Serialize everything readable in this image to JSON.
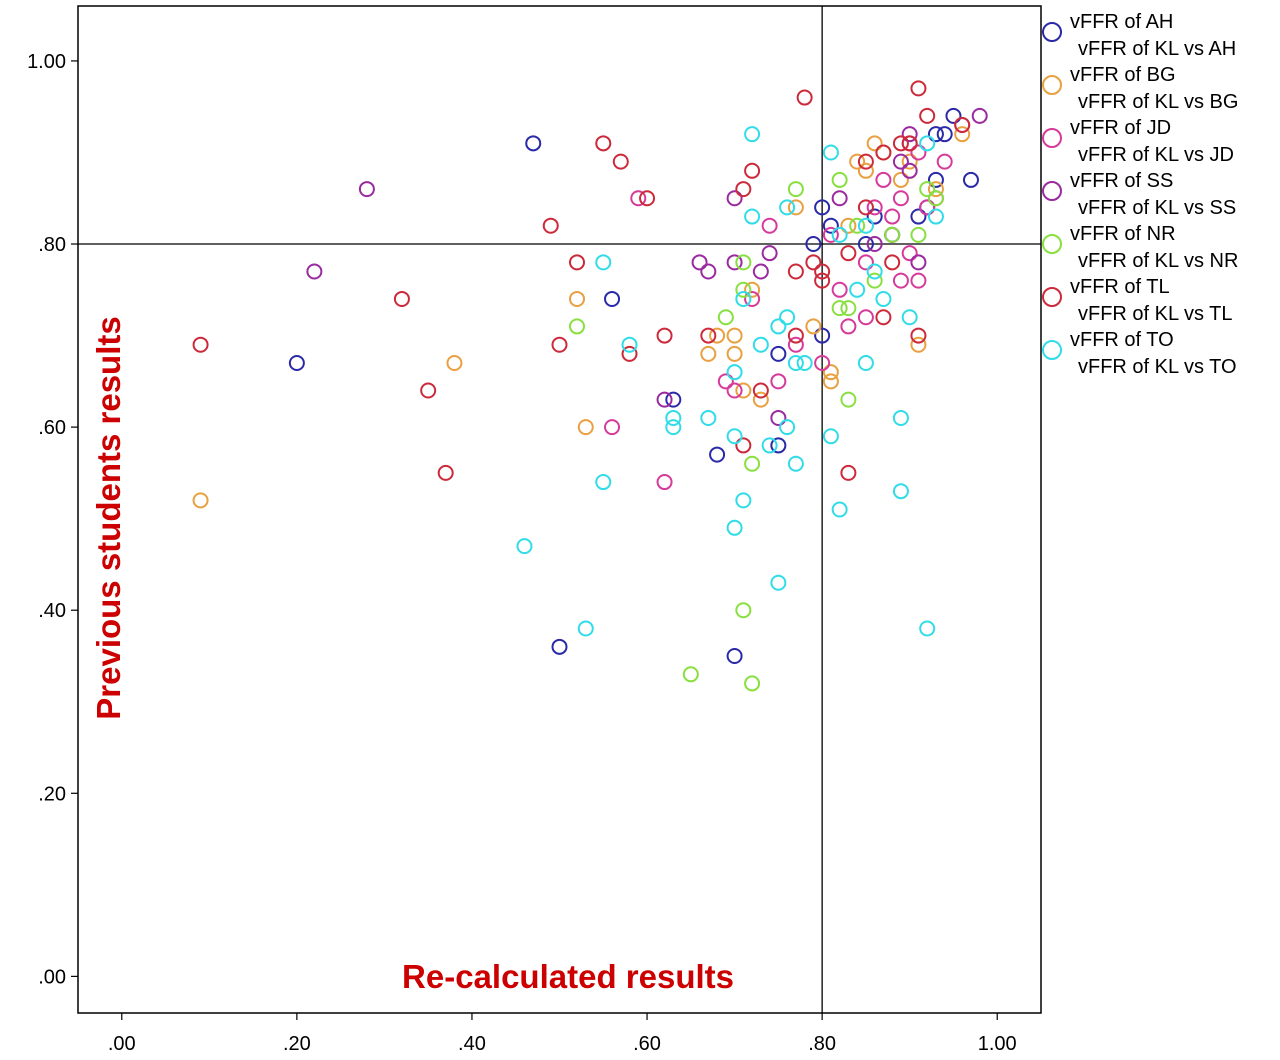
{
  "chart_data": {
    "type": "scatter",
    "title": "",
    "xlabel": "Re-calculated results",
    "ylabel": "Previous students results",
    "xlim": [
      -0.05,
      1.05
    ],
    "ylim": [
      -0.04,
      1.06
    ],
    "x_ticks": [
      ".00",
      ".20",
      ".40",
      ".60",
      ".80",
      "1.00"
    ],
    "y_ticks": [
      ".00",
      ".20",
      ".40",
      ".60",
      ".80",
      "1.00"
    ],
    "grid": false,
    "reference_lines": {
      "x": 0.8,
      "y": 0.8
    },
    "legend_position": "right",
    "series": [
      {
        "name": "vFFR of AH vFFR of KL vs AH",
        "label_line1": "vFFR of AH",
        "label_line2": "vFFR of KL vs AH",
        "color": "#2a2aa8",
        "points": [
          [
            0.2,
            0.67
          ],
          [
            0.47,
            0.91
          ],
          [
            0.5,
            0.36
          ],
          [
            0.56,
            0.74
          ],
          [
            0.63,
            0.63
          ],
          [
            0.68,
            0.57
          ],
          [
            0.7,
            0.35
          ],
          [
            0.75,
            0.68
          ],
          [
            0.75,
            0.58
          ],
          [
            0.79,
            0.8
          ],
          [
            0.8,
            0.84
          ],
          [
            0.8,
            0.7
          ],
          [
            0.81,
            0.82
          ],
          [
            0.85,
            0.8
          ],
          [
            0.86,
            0.83
          ],
          [
            0.88,
            0.81
          ],
          [
            0.91,
            0.83
          ],
          [
            0.92,
            0.84
          ],
          [
            0.93,
            0.87
          ],
          [
            0.93,
            0.92
          ],
          [
            0.94,
            0.92
          ],
          [
            0.95,
            0.94
          ],
          [
            0.97,
            0.87
          ]
        ]
      },
      {
        "name": "vFFR of BG vFFR of KL vs BG",
        "label_line1": "vFFR of BG",
        "label_line2": "vFFR of KL vs BG",
        "color": "#e8a040",
        "points": [
          [
            0.09,
            0.52
          ],
          [
            0.38,
            0.67
          ],
          [
            0.52,
            0.74
          ],
          [
            0.53,
            0.6
          ],
          [
            0.67,
            0.68
          ],
          [
            0.68,
            0.7
          ],
          [
            0.7,
            0.7
          ],
          [
            0.7,
            0.68
          ],
          [
            0.71,
            0.64
          ],
          [
            0.72,
            0.75
          ],
          [
            0.73,
            0.63
          ],
          [
            0.77,
            0.84
          ],
          [
            0.79,
            0.71
          ],
          [
            0.81,
            0.66
          ],
          [
            0.81,
            0.65
          ],
          [
            0.83,
            0.82
          ],
          [
            0.84,
            0.89
          ],
          [
            0.85,
            0.88
          ],
          [
            0.86,
            0.91
          ],
          [
            0.87,
            0.9
          ],
          [
            0.89,
            0.87
          ],
          [
            0.9,
            0.89
          ],
          [
            0.91,
            0.69
          ],
          [
            0.93,
            0.86
          ],
          [
            0.96,
            0.92
          ]
        ]
      },
      {
        "name": "vFFR of JD vFFR of KL vs JD",
        "label_line1": "vFFR of JD",
        "label_line2": "vFFR of KL vs JD",
        "color": "#d63a9a",
        "points": [
          [
            0.56,
            0.6
          ],
          [
            0.59,
            0.85
          ],
          [
            0.62,
            0.54
          ],
          [
            0.69,
            0.65
          ],
          [
            0.7,
            0.64
          ],
          [
            0.72,
            0.74
          ],
          [
            0.74,
            0.82
          ],
          [
            0.75,
            0.65
          ],
          [
            0.77,
            0.69
          ],
          [
            0.8,
            0.67
          ],
          [
            0.81,
            0.81
          ],
          [
            0.82,
            0.75
          ],
          [
            0.83,
            0.71
          ],
          [
            0.85,
            0.72
          ],
          [
            0.85,
            0.78
          ],
          [
            0.86,
            0.84
          ],
          [
            0.87,
            0.87
          ],
          [
            0.88,
            0.83
          ],
          [
            0.89,
            0.85
          ],
          [
            0.89,
            0.76
          ],
          [
            0.9,
            0.79
          ],
          [
            0.9,
            0.91
          ],
          [
            0.91,
            0.76
          ],
          [
            0.91,
            0.9
          ],
          [
            0.92,
            0.84
          ],
          [
            0.93,
            0.85
          ],
          [
            0.94,
            0.89
          ],
          [
            0.96,
            0.93
          ]
        ]
      },
      {
        "name": "vFFR of SS vFFR of KL vs SS",
        "label_line1": "vFFR of SS",
        "label_line2": "vFFR of KL vs SS",
        "color": "#9a2aa0",
        "points": [
          [
            0.22,
            0.77
          ],
          [
            0.28,
            0.86
          ],
          [
            0.62,
            0.63
          ],
          [
            0.66,
            0.78
          ],
          [
            0.67,
            0.77
          ],
          [
            0.7,
            0.78
          ],
          [
            0.7,
            0.85
          ],
          [
            0.73,
            0.77
          ],
          [
            0.74,
            0.79
          ],
          [
            0.75,
            0.61
          ],
          [
            0.82,
            0.85
          ],
          [
            0.86,
            0.8
          ],
          [
            0.88,
            0.81
          ],
          [
            0.89,
            0.89
          ],
          [
            0.9,
            0.92
          ],
          [
            0.9,
            0.88
          ],
          [
            0.91,
            0.78
          ],
          [
            0.98,
            0.94
          ]
        ]
      },
      {
        "name": "vFFR of NR vFFR of KL vs NR",
        "label_line1": "vFFR of NR",
        "label_line2": "vFFR of KL vs NR",
        "color": "#88e040",
        "points": [
          [
            0.52,
            0.71
          ],
          [
            0.65,
            0.33
          ],
          [
            0.69,
            0.72
          ],
          [
            0.71,
            0.4
          ],
          [
            0.71,
            0.78
          ],
          [
            0.71,
            0.75
          ],
          [
            0.72,
            0.56
          ],
          [
            0.72,
            0.32
          ],
          [
            0.77,
            0.86
          ],
          [
            0.82,
            0.87
          ],
          [
            0.82,
            0.73
          ],
          [
            0.83,
            0.73
          ],
          [
            0.83,
            0.63
          ],
          [
            0.84,
            0.82
          ],
          [
            0.86,
            0.76
          ],
          [
            0.88,
            0.81
          ],
          [
            0.91,
            0.81
          ],
          [
            0.92,
            0.86
          ],
          [
            0.93,
            0.85
          ]
        ]
      },
      {
        "name": "vFFR of TL vFFR of KL vs TL",
        "label_line1": "vFFR of TL",
        "label_line2": "vFFR of KL vs TL",
        "color": "#cc2a3a",
        "points": [
          [
            0.09,
            0.69
          ],
          [
            0.32,
            0.74
          ],
          [
            0.35,
            0.64
          ],
          [
            0.37,
            0.55
          ],
          [
            0.49,
            0.82
          ],
          [
            0.5,
            0.69
          ],
          [
            0.52,
            0.78
          ],
          [
            0.55,
            0.91
          ],
          [
            0.57,
            0.89
          ],
          [
            0.58,
            0.68
          ],
          [
            0.6,
            0.85
          ],
          [
            0.62,
            0.7
          ],
          [
            0.67,
            0.7
          ],
          [
            0.71,
            0.86
          ],
          [
            0.71,
            0.58
          ],
          [
            0.72,
            0.88
          ],
          [
            0.73,
            0.64
          ],
          [
            0.77,
            0.77
          ],
          [
            0.77,
            0.7
          ],
          [
            0.78,
            0.96
          ],
          [
            0.79,
            0.78
          ],
          [
            0.8,
            0.77
          ],
          [
            0.8,
            0.76
          ],
          [
            0.83,
            0.79
          ],
          [
            0.83,
            0.55
          ],
          [
            0.85,
            0.89
          ],
          [
            0.85,
            0.84
          ],
          [
            0.87,
            0.9
          ],
          [
            0.87,
            0.72
          ],
          [
            0.88,
            0.78
          ],
          [
            0.89,
            0.91
          ],
          [
            0.9,
            0.91
          ],
          [
            0.91,
            0.97
          ],
          [
            0.91,
            0.7
          ],
          [
            0.92,
            0.94
          ],
          [
            0.96,
            0.93
          ]
        ]
      },
      {
        "name": "vFFR of TO vFFR of KL vs TO",
        "label_line1": "vFFR of TO",
        "label_line2": "vFFR of KL vs TO",
        "color": "#30dce8",
        "points": [
          [
            0.46,
            0.47
          ],
          [
            0.53,
            0.38
          ],
          [
            0.55,
            0.78
          ],
          [
            0.55,
            0.54
          ],
          [
            0.58,
            0.69
          ],
          [
            0.63,
            0.61
          ],
          [
            0.63,
            0.6
          ],
          [
            0.67,
            0.61
          ],
          [
            0.7,
            0.66
          ],
          [
            0.7,
            0.59
          ],
          [
            0.7,
            0.49
          ],
          [
            0.71,
            0.74
          ],
          [
            0.71,
            0.52
          ],
          [
            0.72,
            0.92
          ],
          [
            0.72,
            0.83
          ],
          [
            0.73,
            0.69
          ],
          [
            0.74,
            0.58
          ],
          [
            0.75,
            0.71
          ],
          [
            0.75,
            0.43
          ],
          [
            0.76,
            0.84
          ],
          [
            0.76,
            0.72
          ],
          [
            0.76,
            0.6
          ],
          [
            0.77,
            0.67
          ],
          [
            0.77,
            0.56
          ],
          [
            0.78,
            0.67
          ],
          [
            0.81,
            0.9
          ],
          [
            0.81,
            0.59
          ],
          [
            0.82,
            0.81
          ],
          [
            0.82,
            0.51
          ],
          [
            0.84,
            0.75
          ],
          [
            0.85,
            0.82
          ],
          [
            0.85,
            0.67
          ],
          [
            0.86,
            0.77
          ],
          [
            0.87,
            0.74
          ],
          [
            0.89,
            0.53
          ],
          [
            0.89,
            0.61
          ],
          [
            0.9,
            0.72
          ],
          [
            0.92,
            0.91
          ],
          [
            0.92,
            0.38
          ],
          [
            0.93,
            0.83
          ]
        ]
      }
    ]
  }
}
